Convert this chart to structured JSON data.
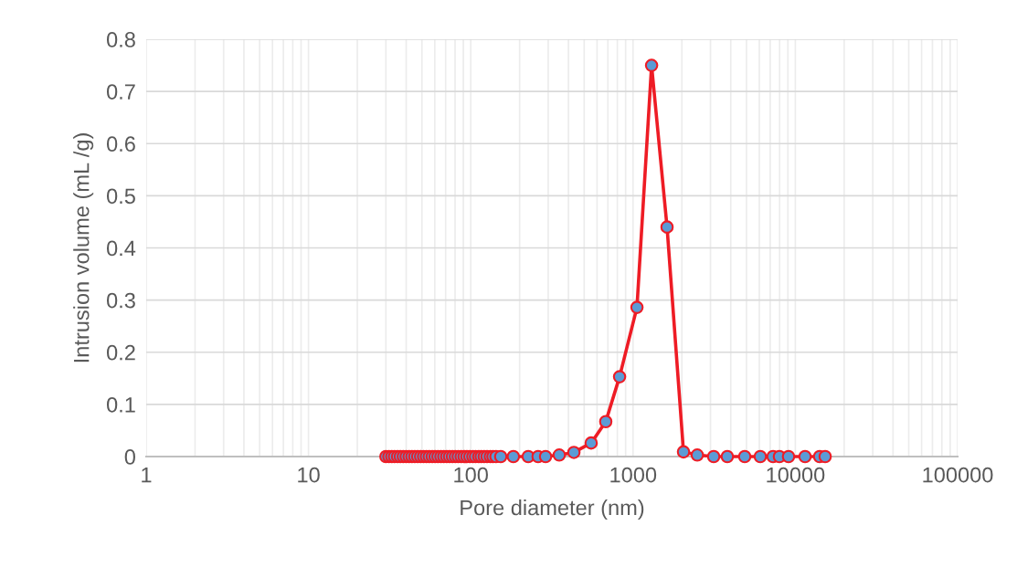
{
  "chart_data": {
    "type": "line",
    "xlabel": "Pore diameter (nm)",
    "ylabel": "Intrusion volume (mL /g)",
    "log": "x",
    "xlim": [
      1,
      100000
    ],
    "xticks": [
      1,
      10,
      100,
      1000,
      10000,
      100000
    ],
    "ylim": [
      0,
      0.8
    ],
    "yticks": [
      0,
      0.1,
      0.2,
      0.3,
      0.4,
      0.5,
      0.6,
      0.7,
      0.8
    ],
    "grid": true,
    "legend": false,
    "marker": "circle",
    "line_style": "solid",
    "series": [
      {
        "color": "#ee1c25",
        "x": [
          30,
          31.3,
          32.6,
          33.9,
          35.4,
          36.8,
          38.4,
          40,
          41.7,
          43.4,
          45.2,
          47.1,
          49.1,
          51.2,
          53.3,
          55.5,
          57.9,
          60.3,
          62.8,
          65.5,
          68.2,
          71.1,
          74,
          77.1,
          80.4,
          83.7,
          87.3,
          90.9,
          94.7,
          98.7,
          103,
          107,
          112,
          116,
          121,
          126,
          132,
          137,
          143,
          153,
          183,
          226,
          260,
          289,
          351,
          432,
          552,
          679,
          826,
          1057,
          1301,
          1620,
          2046,
          2488,
          3140,
          3810,
          4877,
          6083,
          7290,
          7980,
          9080,
          11480,
          14120,
          15270
        ],
        "values": [
          0,
          0,
          0,
          0,
          0,
          0,
          0,
          0,
          0,
          0,
          0,
          0,
          0,
          0,
          0,
          0,
          0,
          0,
          0,
          0,
          0,
          0,
          0,
          0,
          0,
          0,
          0,
          0,
          0,
          0,
          0,
          0,
          0,
          0,
          0,
          0,
          0,
          0,
          0,
          0,
          0,
          0,
          0,
          0,
          0.003,
          0.008,
          0.026,
          0.067,
          0.153,
          0.286,
          0.75,
          0.44,
          0.009,
          0.003,
          0,
          0,
          0,
          0,
          0,
          0,
          0,
          0,
          0,
          0
        ]
      }
    ]
  }
}
